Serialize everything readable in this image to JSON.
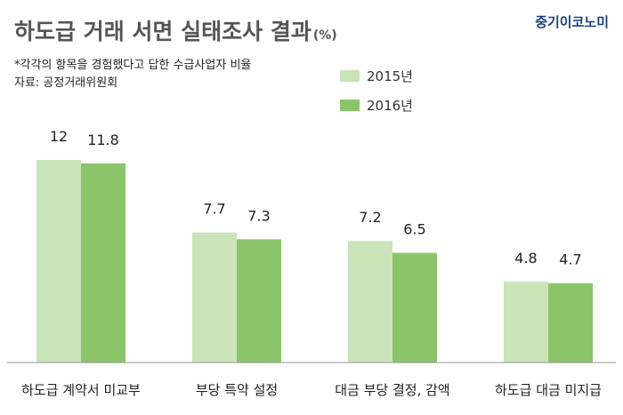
{
  "header": {
    "title": "하도급 거래 서면 실태조사 결과",
    "unit": "(%)",
    "brand": "중기이코노미"
  },
  "notes": [
    "*각각의 항목을 경험했다고 답한 수급사업자 비율",
    "자료: 공정거래위원회"
  ],
  "colors": {
    "series_2015": "#c9e4b8",
    "series_2016": "#8cc46a",
    "baseline": "#999999"
  },
  "chart_data": {
    "type": "bar",
    "title": "하도급 거래 서면 실태조사 결과",
    "ylabel": "",
    "xlabel": "",
    "ylim": [
      0,
      12
    ],
    "grid": false,
    "legend": "top-center",
    "categories": [
      "하도급 계약서 미교부",
      "부당 특약 설정",
      "대금 부당 결정, 감액",
      "하도급 대금 미지급"
    ],
    "series": [
      {
        "name": "2015년",
        "values": [
          12,
          7.7,
          7.2,
          4.8
        ],
        "labels": [
          "12",
          "7.7",
          "7.2",
          "4.8"
        ]
      },
      {
        "name": "2016년",
        "values": [
          11.8,
          7.3,
          6.5,
          4.7
        ],
        "labels": [
          "11.8",
          "7.3",
          "6.5",
          "4.7"
        ]
      }
    ]
  }
}
